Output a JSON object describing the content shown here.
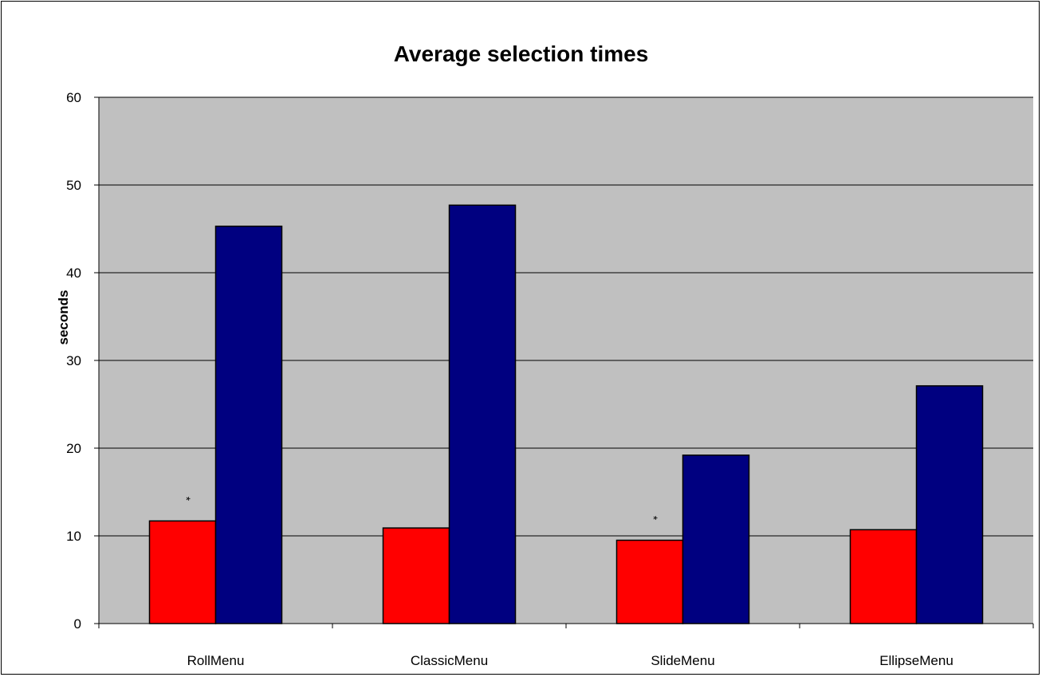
{
  "chart_data": {
    "type": "bar",
    "title": "Average selection times",
    "xlabel": "",
    "ylabel": "seconds",
    "ylim": [
      0,
      60
    ],
    "yticks": [
      0,
      10,
      20,
      30,
      40,
      50,
      60
    ],
    "grid": true,
    "legend": "none",
    "categories": [
      "RollMenu",
      "ClassicMenu",
      "SlideMenu",
      "EllipseMenu"
    ],
    "series": [
      {
        "color": "#ff0000",
        "values": [
          11.7,
          10.9,
          9.5,
          10.7
        ]
      },
      {
        "color": "#000080",
        "values": [
          45.3,
          47.7,
          19.2,
          27.1
        ]
      }
    ],
    "annotations": [
      {
        "category": "RollMenu",
        "text": "*"
      },
      {
        "category": "SlideMenu",
        "text": "*"
      }
    ],
    "plot_background": "#c0c0c0"
  }
}
